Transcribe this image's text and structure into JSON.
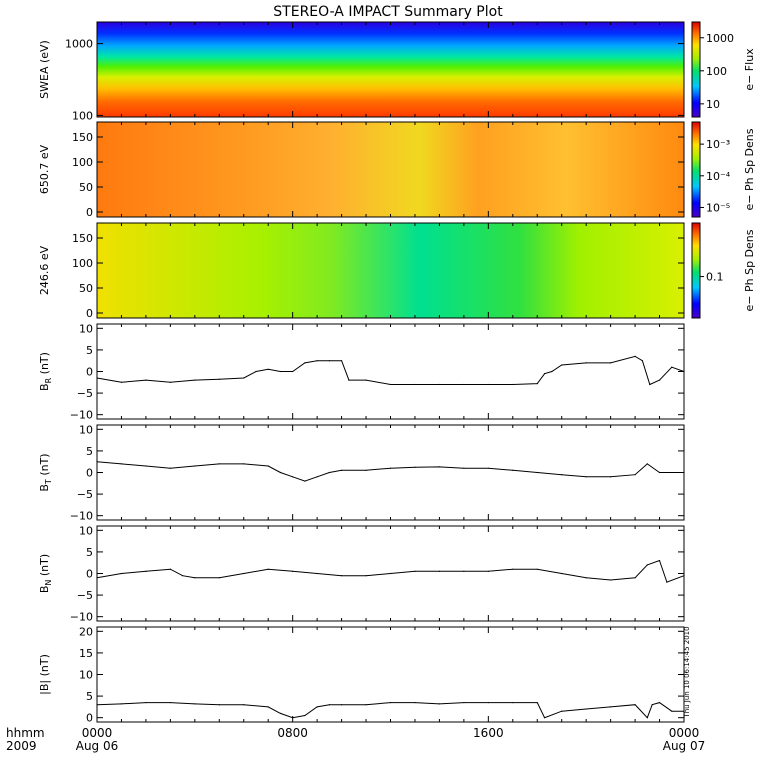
{
  "title": "STEREO-A IMPACT Summary Plot",
  "timestamp": "Thu Jun 10 06:14:45 2010",
  "time_axis": {
    "row1_label": "hhmm",
    "row2_label": "2009",
    "ticks": [
      {
        "hour": 0,
        "label": "0000",
        "sub": "Aug 06"
      },
      {
        "hour": 8,
        "label": "0800",
        "sub": ""
      },
      {
        "hour": 16,
        "label": "1600",
        "sub": ""
      },
      {
        "hour": 24,
        "label": "0000",
        "sub": "Aug 07"
      }
    ],
    "range_hours": [
      0,
      24
    ]
  },
  "colors": {
    "axis": "#000000",
    "trace": "#000000"
  },
  "chart_data": [
    {
      "type": "heatmap",
      "ylabel": "SWEA (eV)",
      "yscale": "log",
      "ylim": [
        95,
        2000
      ],
      "yticks": [
        100,
        1000
      ],
      "ytick_labels": [
        "100",
        "1000"
      ],
      "colorbar": {
        "label": "e− Flux",
        "scale": "log",
        "range": [
          4,
          3000
        ],
        "ticks": [
          10,
          100,
          1000
        ],
        "tick_labels": [
          "10",
          "100",
          "1000"
        ]
      }
    },
    {
      "type": "heatmap",
      "ylabel": "650.7 eV",
      "ylim": [
        -10,
        180
      ],
      "yticks": [
        0,
        50,
        100,
        150
      ],
      "ytick_labels": [
        "0",
        "50",
        "100",
        "150"
      ],
      "colorbar": {
        "label": "e− Ph Sp Dens",
        "scale": "log",
        "range": [
          5e-06,
          0.005
        ],
        "ticks": [
          1e-05,
          0.0001,
          0.001
        ],
        "tick_labels": [
          "10⁻⁵",
          "10⁻⁴",
          "10⁻³"
        ]
      }
    },
    {
      "type": "heatmap",
      "ylabel": "246.6 eV",
      "ylim": [
        -10,
        180
      ],
      "yticks": [
        0,
        50,
        100,
        150
      ],
      "ytick_labels": [
        "0",
        "50",
        "100",
        "150"
      ],
      "colorbar": {
        "label": "e− Ph Sp Dens",
        "scale": "log",
        "range": [
          0.02,
          0.8
        ],
        "ticks": [
          0.1
        ],
        "tick_labels": [
          "0.1"
        ]
      }
    },
    {
      "type": "line",
      "ylabel": "B",
      "ylabel_sub": "R",
      "ylabel_unit": "(nT)",
      "ylim": [
        -11,
        11
      ],
      "yticks": [
        -10,
        -5,
        0,
        5,
        10
      ],
      "ytick_labels": [
        "−10",
        "−5",
        "0",
        "5",
        "10"
      ],
      "x": [
        0,
        1,
        2,
        3,
        4,
        5,
        6,
        6.5,
        7,
        7.5,
        8,
        8.5,
        9,
        9.5,
        10,
        10.3,
        11,
        12,
        13,
        14,
        15,
        16,
        17,
        18,
        18.3,
        18.6,
        19,
        20,
        21,
        22,
        22.3,
        22.6,
        23,
        23.5,
        24
      ],
      "y": [
        -1.5,
        -2.5,
        -2,
        -2.5,
        -2,
        -1.8,
        -1.5,
        0,
        0.5,
        0,
        0,
        2,
        2.5,
        2.5,
        2.5,
        -2,
        -2,
        -3,
        -3,
        -3,
        -3,
        -3,
        -3,
        -2.8,
        -0.5,
        0,
        1.5,
        2,
        2,
        3.5,
        2.5,
        -3,
        -2,
        1,
        0
      ]
    },
    {
      "type": "line",
      "ylabel": "B",
      "ylabel_sub": "T",
      "ylabel_unit": "(nT)",
      "ylim": [
        -11,
        11
      ],
      "yticks": [
        -10,
        -5,
        0,
        5,
        10
      ],
      "ytick_labels": [
        "−10",
        "−5",
        "0",
        "5",
        "10"
      ],
      "x": [
        0,
        1,
        2,
        3,
        4,
        5,
        6,
        7,
        7.5,
        8,
        8.5,
        9,
        9.5,
        10,
        11,
        12,
        13,
        14,
        15,
        16,
        17,
        18,
        19,
        20,
        21,
        22,
        22.5,
        23,
        24
      ],
      "y": [
        2.5,
        2,
        1.5,
        1,
        1.5,
        2,
        2,
        1.5,
        0,
        -1,
        -2,
        -1,
        0,
        0.5,
        0.5,
        1,
        1.2,
        1.3,
        1,
        1,
        0.5,
        0,
        -0.5,
        -1,
        -1,
        -0.5,
        2,
        0,
        0
      ]
    },
    {
      "type": "line",
      "ylabel": "B",
      "ylabel_sub": "N",
      "ylabel_unit": "(nT)",
      "ylim": [
        -11,
        11
      ],
      "yticks": [
        -10,
        -5,
        0,
        5,
        10
      ],
      "ytick_labels": [
        "−10",
        "−5",
        "0",
        "5",
        "10"
      ],
      "x": [
        0,
        1,
        2,
        3,
        3.5,
        4,
        5,
        6,
        7,
        8,
        9,
        10,
        11,
        12,
        13,
        14,
        15,
        16,
        17,
        18,
        19,
        20,
        21,
        22,
        22.5,
        23,
        23.3,
        24
      ],
      "y": [
        -1,
        0,
        0.5,
        1,
        -0.5,
        -1,
        -1,
        0,
        1,
        0.5,
        0,
        -0.5,
        -0.5,
        0,
        0.5,
        0.5,
        0.5,
        0.5,
        1,
        1,
        0,
        -1,
        -1.5,
        -1,
        2,
        3,
        -2,
        -0.5
      ]
    },
    {
      "type": "line",
      "ylabel": "|B|",
      "ylabel_unit": "(nT)",
      "ylim": [
        -1,
        21
      ],
      "yticks": [
        0,
        5,
        10,
        15,
        20
      ],
      "ytick_labels": [
        "0",
        "5",
        "10",
        "15",
        "20"
      ],
      "x": [
        0,
        1,
        2,
        3,
        4,
        5,
        6,
        7,
        7.5,
        8,
        8.5,
        9,
        9.5,
        10,
        11,
        12,
        13,
        14,
        15,
        16,
        17,
        18,
        18.3,
        19,
        20,
        21,
        22,
        22.5,
        22.7,
        23,
        23.5,
        24
      ],
      "y": [
        3,
        3.2,
        3.5,
        3.5,
        3.2,
        3,
        3,
        2.5,
        1,
        0,
        0.5,
        2.5,
        3,
        3,
        3,
        3.5,
        3.5,
        3.2,
        3.5,
        3.5,
        3.5,
        3.5,
        0,
        1.5,
        2,
        2.5,
        3,
        0,
        3,
        3.5,
        1.5,
        1.5
      ]
    }
  ]
}
